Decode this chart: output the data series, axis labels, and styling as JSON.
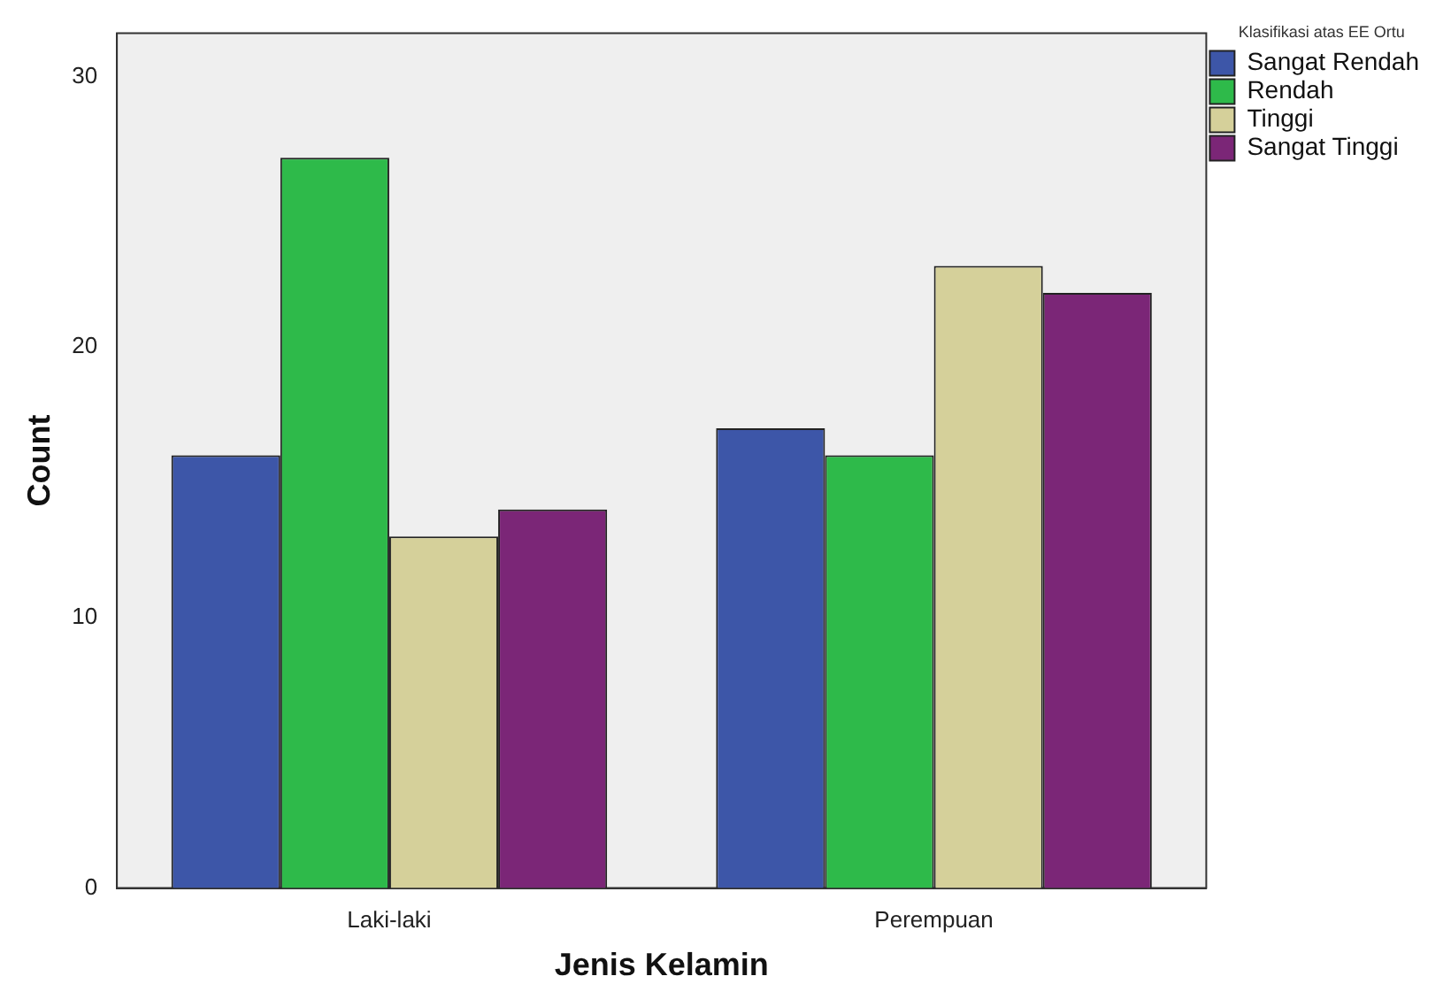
{
  "chart_data": {
    "type": "bar",
    "xlabel": "Jenis Kelamin",
    "ylabel": "Count",
    "legend_title": "Klasifikasi atas EE Ortu",
    "categories": [
      "Laki-laki",
      "Perempuan"
    ],
    "series": [
      {
        "name": "Sangat Rendah",
        "color": "#3d56a8",
        "values": [
          16,
          17
        ]
      },
      {
        "name": "Rendah",
        "color": "#2eba4a",
        "values": [
          27,
          16
        ]
      },
      {
        "name": "Tinggi",
        "color": "#d5d09a",
        "values": [
          13,
          23
        ]
      },
      {
        "name": "Sangat Tinggi",
        "color": "#7b2677",
        "values": [
          14,
          22
        ]
      }
    ],
    "ylim": [
      0,
      31.6
    ],
    "yticks": [
      0,
      10,
      20,
      30
    ],
    "grid": false,
    "legend": "top right"
  }
}
